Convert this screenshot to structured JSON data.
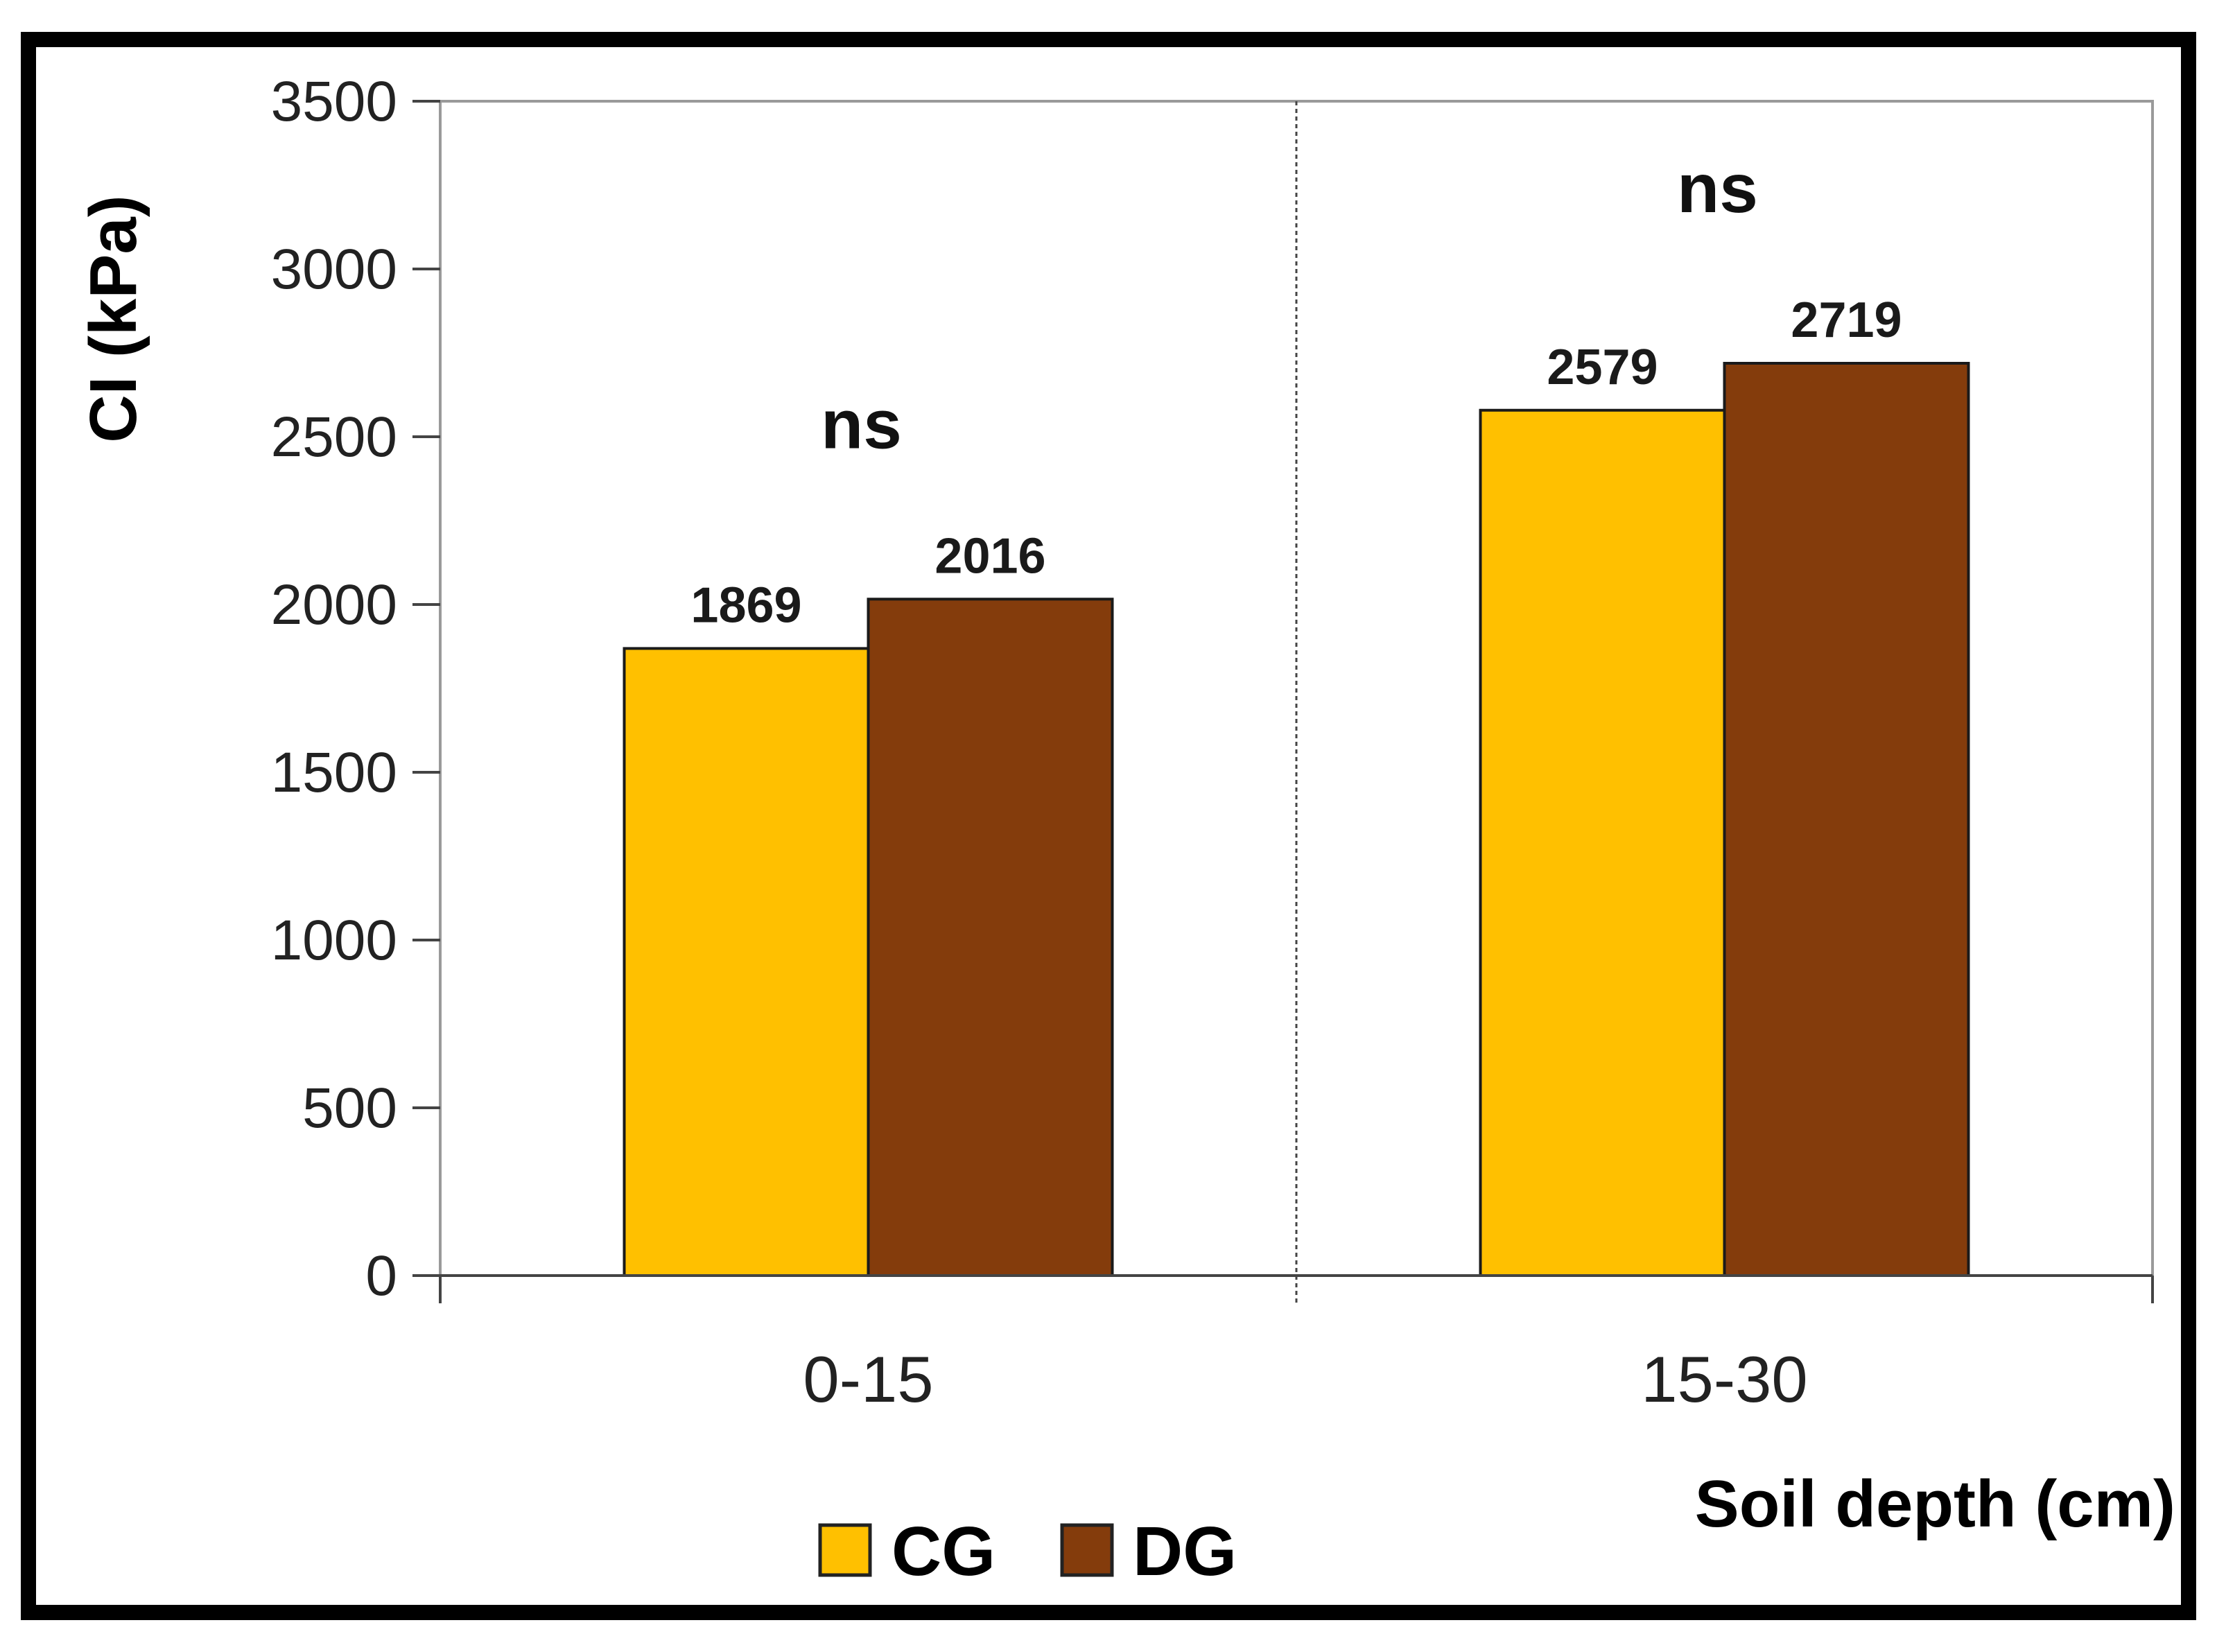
{
  "chart_data": {
    "type": "bar",
    "categories": [
      "0-15",
      "15-30"
    ],
    "series": [
      {
        "name": "CG",
        "values": [
          1869,
          2579
        ],
        "color": "#FFC000"
      },
      {
        "name": "DG",
        "values": [
          2016,
          2719
        ],
        "color": "#843C0C"
      }
    ],
    "annotations": [
      "ns",
      "ns"
    ],
    "ylabel": "CI (kPa)",
    "xlabel": "Soil depth (cm)",
    "ylim": [
      0,
      3500
    ],
    "yticks": [
      0,
      500,
      1000,
      1500,
      2000,
      2500,
      3000,
      3500
    ],
    "legend": {
      "placement": "bottom-left"
    }
  }
}
